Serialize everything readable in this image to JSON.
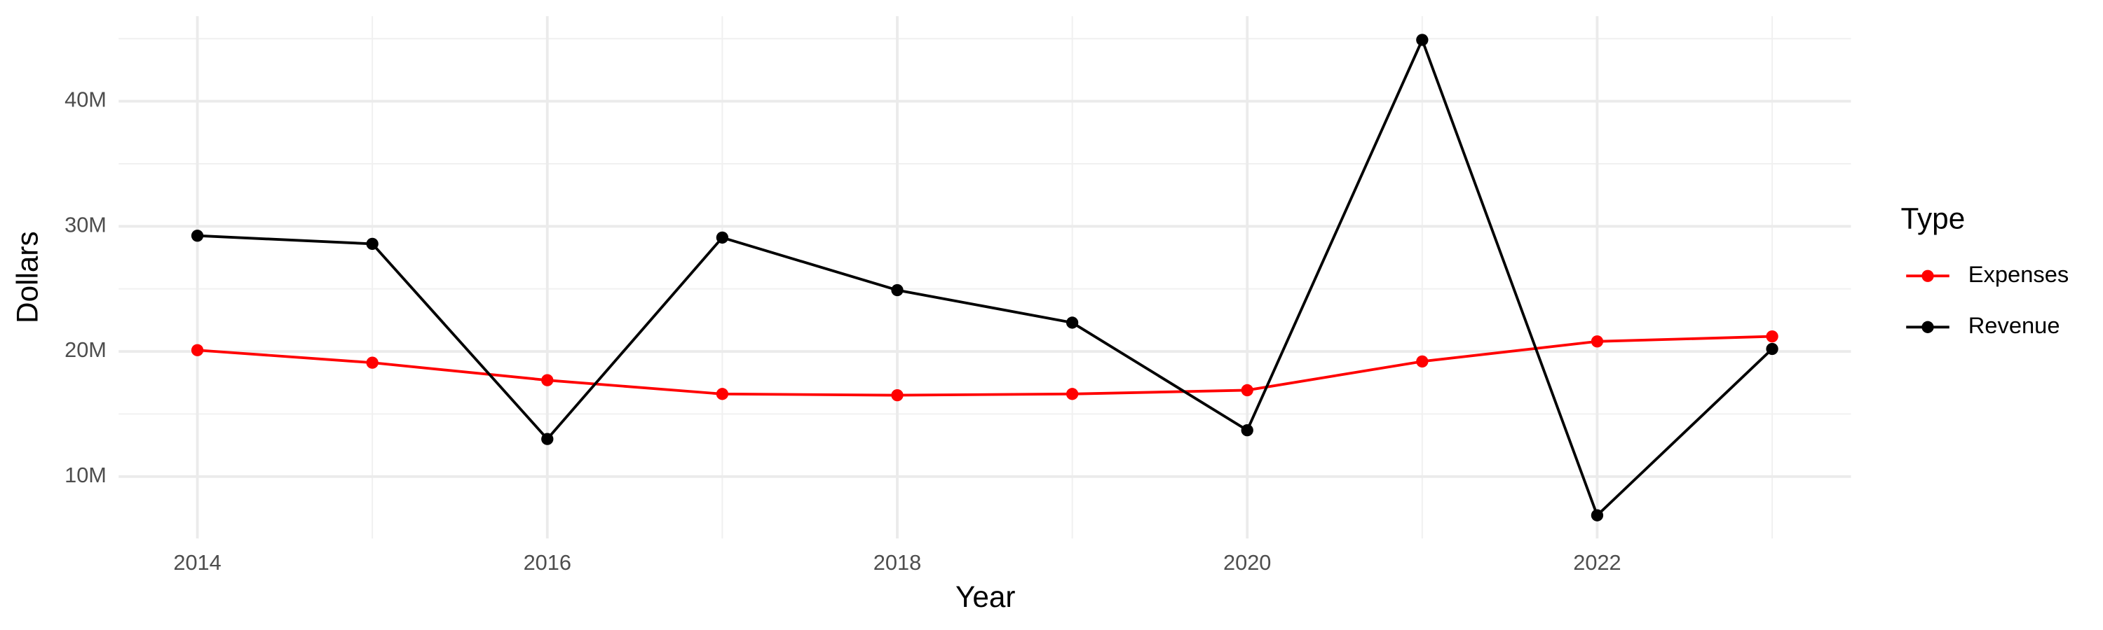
{
  "chart_data": {
    "type": "line",
    "x_label": "Year",
    "y_label": "Dollars",
    "legend_title": "Type",
    "x": [
      2014,
      2015,
      2016,
      2017,
      2018,
      2019,
      2020,
      2021,
      2022,
      2023
    ],
    "series": [
      {
        "name": "Expenses",
        "color": "#ff0000",
        "values": [
          20100000,
          19100000,
          17700000,
          16600000,
          16500000,
          16600000,
          16900000,
          19200000,
          20800000,
          21200000
        ]
      },
      {
        "name": "Revenue",
        "color": "#000000",
        "values": [
          29250000,
          28600000,
          13000000,
          29100000,
          24900000,
          22300000,
          13700000,
          44900000,
          6900000,
          20200000
        ]
      }
    ],
    "xlim": [
      2013.55,
      2023.45
    ],
    "xticks": [
      2014,
      2016,
      2018,
      2020,
      2022
    ],
    "ylim": [
      5050000,
      46800000
    ],
    "yticks": [
      {
        "value": 10000000,
        "label": "10M"
      },
      {
        "value": 20000000,
        "label": "20M"
      },
      {
        "value": 30000000,
        "label": "30M"
      },
      {
        "value": 40000000,
        "label": "40M"
      }
    ],
    "grid": true,
    "legend_position": "right"
  }
}
